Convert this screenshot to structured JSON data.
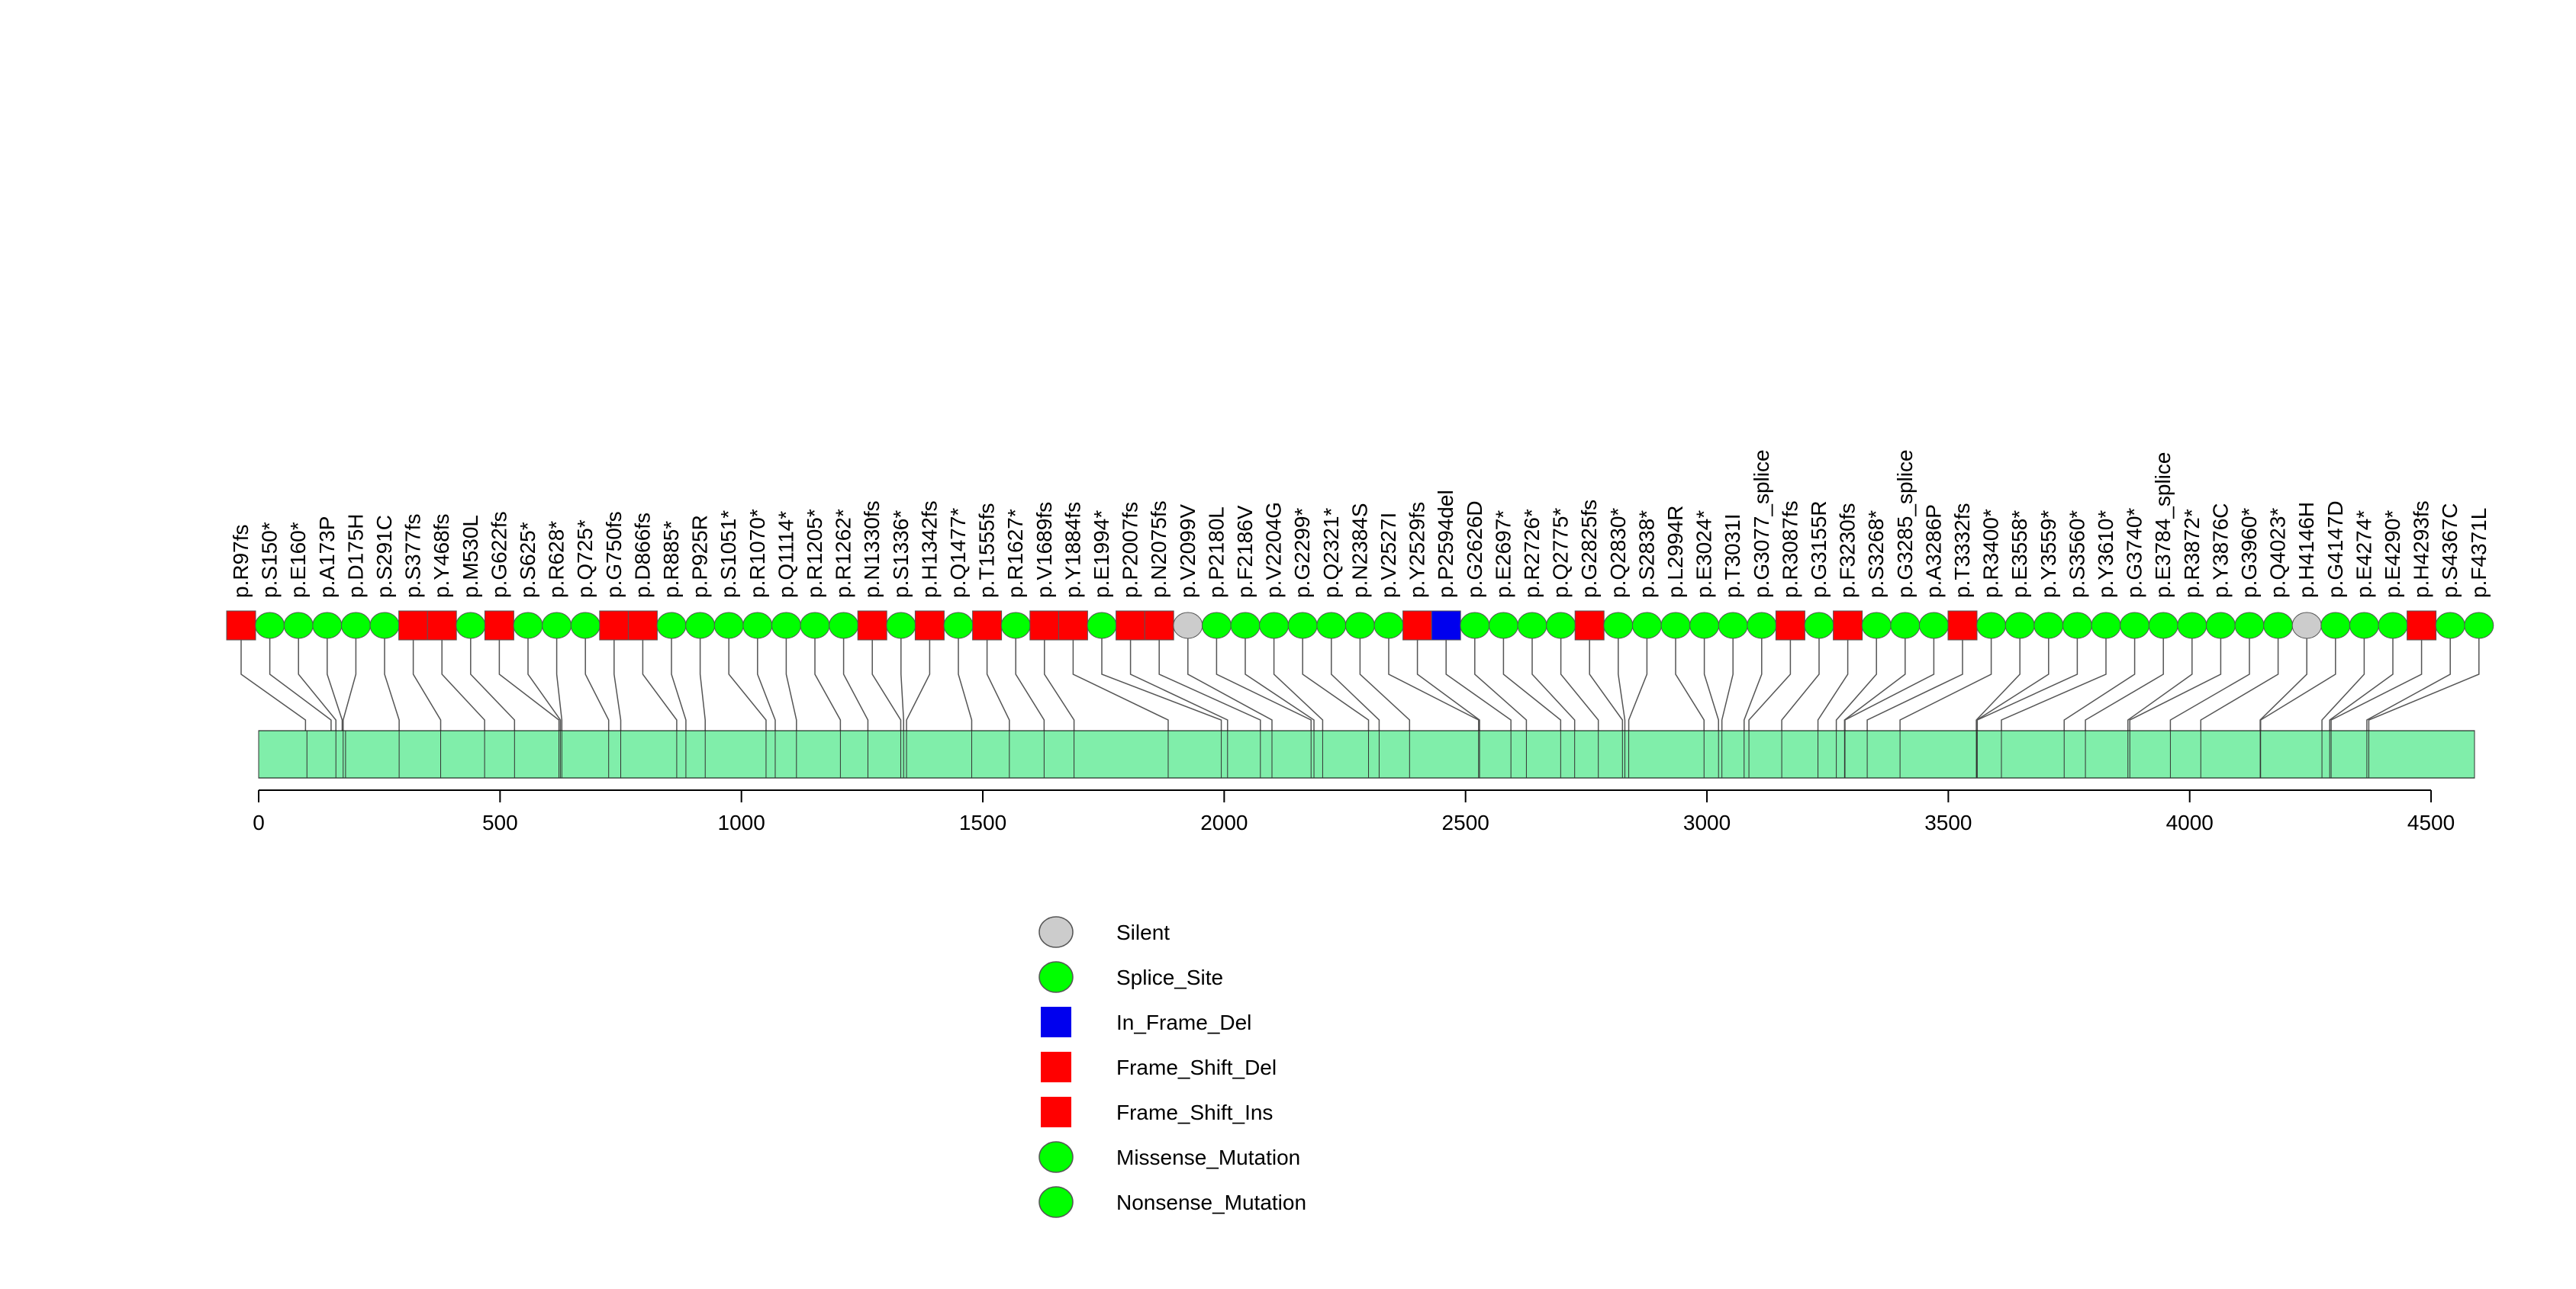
{
  "chart_data": {
    "type": "lollipop",
    "title": "",
    "xlabel": "",
    "ylabel": "",
    "xlim": [
      0,
      4590
    ],
    "axis_ticks": [
      0,
      500,
      1000,
      1500,
      2000,
      2500,
      3000,
      3500,
      4000,
      4500
    ],
    "colors": {
      "Silent": "#cccccc",
      "Splice_Site": "#00ff00",
      "In_Frame_Del": "#0000ee",
      "Frame_Shift_Del": "#ff0000",
      "Frame_Shift_Ins": "#ff0000",
      "Missense_Mutation": "#00ff00",
      "Nonsense_Mutation": "#00ff00",
      "protein_bar": "#80eeaa"
    },
    "legend": [
      {
        "label": "Silent",
        "shape": "circle",
        "color": "#cccccc"
      },
      {
        "label": "Splice_Site",
        "shape": "circle",
        "color": "#00ff00"
      },
      {
        "label": "In_Frame_Del",
        "shape": "square",
        "color": "#0000ee"
      },
      {
        "label": "Frame_Shift_Del",
        "shape": "square",
        "color": "#ff0000"
      },
      {
        "label": "Frame_Shift_Ins",
        "shape": "square",
        "color": "#ff0000"
      },
      {
        "label": "Missense_Mutation",
        "shape": "circle",
        "color": "#00ff00"
      },
      {
        "label": "Nonsense_Mutation",
        "shape": "circle",
        "color": "#00ff00"
      }
    ],
    "domain_bounds": [
      0,
      100,
      160,
      175,
      180,
      291,
      377,
      468,
      530,
      622,
      625,
      628,
      725,
      750,
      866,
      885,
      925,
      1051,
      1070,
      1114,
      1205,
      1262,
      1330,
      1336,
      1342,
      1477,
      1555,
      1627,
      1689,
      1884,
      1994,
      2007,
      2075,
      2099,
      2180,
      2186,
      2204,
      2299,
      2321,
      2384,
      2527,
      2529,
      2594,
      2626,
      2697,
      2726,
      2775,
      2825,
      2830,
      2838,
      2994,
      3024,
      3031,
      3077,
      3087,
      3155,
      3230,
      3268,
      3285,
      3286,
      3332,
      3400,
      3558,
      3559,
      3560,
      3610,
      3740,
      3784,
      3872,
      3876,
      3960,
      4023,
      4146,
      4147,
      4274,
      4290,
      4293,
      4367,
      4371,
      4590
    ],
    "mutations": [
      {
        "label": "p.R97fs",
        "pos": 97,
        "type": "Frame_Shift_Del"
      },
      {
        "label": "p.S150*",
        "pos": 150,
        "type": "Nonsense_Mutation"
      },
      {
        "label": "p.E160*",
        "pos": 160,
        "type": "Nonsense_Mutation"
      },
      {
        "label": "p.A173P",
        "pos": 173,
        "type": "Missense_Mutation"
      },
      {
        "label": "p.D175H",
        "pos": 175,
        "type": "Missense_Mutation"
      },
      {
        "label": "p.S291C",
        "pos": 291,
        "type": "Missense_Mutation"
      },
      {
        "label": "p.S377fs",
        "pos": 377,
        "type": "Frame_Shift_Del"
      },
      {
        "label": "p.Y468fs",
        "pos": 468,
        "type": "Frame_Shift_Del"
      },
      {
        "label": "p.M530L",
        "pos": 530,
        "type": "Missense_Mutation"
      },
      {
        "label": "p.G622fs",
        "pos": 622,
        "type": "Frame_Shift_Del"
      },
      {
        "label": "p.S625*",
        "pos": 625,
        "type": "Nonsense_Mutation"
      },
      {
        "label": "p.R628*",
        "pos": 628,
        "type": "Nonsense_Mutation"
      },
      {
        "label": "p.Q725*",
        "pos": 725,
        "type": "Nonsense_Mutation"
      },
      {
        "label": "p.G750fs",
        "pos": 750,
        "type": "Frame_Shift_Del"
      },
      {
        "label": "p.D866fs",
        "pos": 866,
        "type": "Frame_Shift_Del"
      },
      {
        "label": "p.R885*",
        "pos": 885,
        "type": "Nonsense_Mutation"
      },
      {
        "label": "p.P925R",
        "pos": 925,
        "type": "Missense_Mutation"
      },
      {
        "label": "p.S1051*",
        "pos": 1051,
        "type": "Nonsense_Mutation"
      },
      {
        "label": "p.R1070*",
        "pos": 1070,
        "type": "Nonsense_Mutation"
      },
      {
        "label": "p.Q1114*",
        "pos": 1114,
        "type": "Nonsense_Mutation"
      },
      {
        "label": "p.R1205*",
        "pos": 1205,
        "type": "Nonsense_Mutation"
      },
      {
        "label": "p.R1262*",
        "pos": 1262,
        "type": "Nonsense_Mutation"
      },
      {
        "label": "p.N1330fs",
        "pos": 1330,
        "type": "Frame_Shift_Del"
      },
      {
        "label": "p.S1336*",
        "pos": 1336,
        "type": "Nonsense_Mutation"
      },
      {
        "label": "p.H1342fs",
        "pos": 1342,
        "type": "Frame_Shift_Del"
      },
      {
        "label": "p.Q1477*",
        "pos": 1477,
        "type": "Nonsense_Mutation"
      },
      {
        "label": "p.T1555fs",
        "pos": 1555,
        "type": "Frame_Shift_Del"
      },
      {
        "label": "p.R1627*",
        "pos": 1627,
        "type": "Nonsense_Mutation"
      },
      {
        "label": "p.V1689fs",
        "pos": 1689,
        "type": "Frame_Shift_Del"
      },
      {
        "label": "p.Y1884fs",
        "pos": 1884,
        "type": "Frame_Shift_Del"
      },
      {
        "label": "p.E1994*",
        "pos": 1994,
        "type": "Nonsense_Mutation"
      },
      {
        "label": "p.P2007fs",
        "pos": 2007,
        "type": "Frame_Shift_Del"
      },
      {
        "label": "p.N2075fs",
        "pos": 2075,
        "type": "Frame_Shift_Del"
      },
      {
        "label": "p.V2099V",
        "pos": 2099,
        "type": "Silent"
      },
      {
        "label": "p.P2180L",
        "pos": 2180,
        "type": "Missense_Mutation"
      },
      {
        "label": "p.F2186V",
        "pos": 2186,
        "type": "Missense_Mutation"
      },
      {
        "label": "p.V2204G",
        "pos": 2204,
        "type": "Missense_Mutation"
      },
      {
        "label": "p.G2299*",
        "pos": 2299,
        "type": "Nonsense_Mutation"
      },
      {
        "label": "p.Q2321*",
        "pos": 2321,
        "type": "Nonsense_Mutation"
      },
      {
        "label": "p.N2384S",
        "pos": 2384,
        "type": "Missense_Mutation"
      },
      {
        "label": "p.V2527I",
        "pos": 2527,
        "type": "Missense_Mutation"
      },
      {
        "label": "p.Y2529fs",
        "pos": 2529,
        "type": "Frame_Shift_Del"
      },
      {
        "label": "p.P2594del",
        "pos": 2594,
        "type": "In_Frame_Del"
      },
      {
        "label": "p.G2626D",
        "pos": 2626,
        "type": "Missense_Mutation"
      },
      {
        "label": "p.E2697*",
        "pos": 2697,
        "type": "Nonsense_Mutation"
      },
      {
        "label": "p.R2726*",
        "pos": 2726,
        "type": "Nonsense_Mutation"
      },
      {
        "label": "p.Q2775*",
        "pos": 2775,
        "type": "Nonsense_Mutation"
      },
      {
        "label": "p.G2825fs",
        "pos": 2825,
        "type": "Frame_Shift_Del"
      },
      {
        "label": "p.Q2830*",
        "pos": 2830,
        "type": "Nonsense_Mutation"
      },
      {
        "label": "p.S2838*",
        "pos": 2838,
        "type": "Nonsense_Mutation"
      },
      {
        "label": "p.L2994R",
        "pos": 2994,
        "type": "Missense_Mutation"
      },
      {
        "label": "p.E3024*",
        "pos": 3024,
        "type": "Nonsense_Mutation"
      },
      {
        "label": "p.T3031I",
        "pos": 3031,
        "type": "Missense_Mutation"
      },
      {
        "label": "p.G3077_splice",
        "pos": 3077,
        "type": "Splice_Site"
      },
      {
        "label": "p.R3087fs",
        "pos": 3087,
        "type": "Frame_Shift_Del"
      },
      {
        "label": "p.G3155R",
        "pos": 3155,
        "type": "Missense_Mutation"
      },
      {
        "label": "p.F3230fs",
        "pos": 3230,
        "type": "Frame_Shift_Del"
      },
      {
        "label": "p.S3268*",
        "pos": 3268,
        "type": "Nonsense_Mutation"
      },
      {
        "label": "p.G3285_splice",
        "pos": 3285,
        "type": "Splice_Site"
      },
      {
        "label": "p.A3286P",
        "pos": 3286,
        "type": "Missense_Mutation"
      },
      {
        "label": "p.T3332fs",
        "pos": 3332,
        "type": "Frame_Shift_Del"
      },
      {
        "label": "p.R3400*",
        "pos": 3400,
        "type": "Nonsense_Mutation"
      },
      {
        "label": "p.E3558*",
        "pos": 3558,
        "type": "Nonsense_Mutation"
      },
      {
        "label": "p.Y3559*",
        "pos": 3559,
        "type": "Nonsense_Mutation"
      },
      {
        "label": "p.S3560*",
        "pos": 3560,
        "type": "Nonsense_Mutation"
      },
      {
        "label": "p.Y3610*",
        "pos": 3610,
        "type": "Nonsense_Mutation"
      },
      {
        "label": "p.G3740*",
        "pos": 3740,
        "type": "Nonsense_Mutation"
      },
      {
        "label": "p.E3784_splice",
        "pos": 3784,
        "type": "Splice_Site"
      },
      {
        "label": "p.R3872*",
        "pos": 3872,
        "type": "Nonsense_Mutation"
      },
      {
        "label": "p.Y3876C",
        "pos": 3876,
        "type": "Missense_Mutation"
      },
      {
        "label": "p.G3960*",
        "pos": 3960,
        "type": "Nonsense_Mutation"
      },
      {
        "label": "p.Q4023*",
        "pos": 4023,
        "type": "Nonsense_Mutation"
      },
      {
        "label": "p.H4146H",
        "pos": 4146,
        "type": "Silent"
      },
      {
        "label": "p.G4147D",
        "pos": 4147,
        "type": "Missense_Mutation"
      },
      {
        "label": "p.E4274*",
        "pos": 4274,
        "type": "Nonsense_Mutation"
      },
      {
        "label": "p.E4290*",
        "pos": 4290,
        "type": "Nonsense_Mutation"
      },
      {
        "label": "p.H4293fs",
        "pos": 4293,
        "type": "Frame_Shift_Del"
      },
      {
        "label": "p.S4367C",
        "pos": 4367,
        "type": "Missense_Mutation"
      },
      {
        "label": "p.F4371L",
        "pos": 4371,
        "type": "Missense_Mutation"
      }
    ]
  }
}
